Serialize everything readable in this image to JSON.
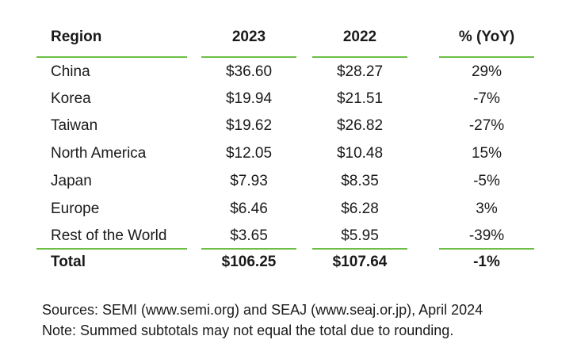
{
  "table": {
    "headers": {
      "region": "Region",
      "y2023": "2023",
      "y2022": "2022",
      "yoy": "% (YoY)"
    },
    "rows": [
      {
        "region": "China",
        "y2023": "$36.60",
        "y2022": "$28.27",
        "yoy": "29%"
      },
      {
        "region": "Korea",
        "y2023": "$19.94",
        "y2022": "$21.51",
        "yoy": "-7%"
      },
      {
        "region": "Taiwan",
        "y2023": "$19.62",
        "y2022": "$26.82",
        "yoy": "-27%"
      },
      {
        "region": "North America",
        "y2023": "$12.05",
        "y2022": "$10.48",
        "yoy": "15%"
      },
      {
        "region": "Japan",
        "y2023": "$7.93",
        "y2022": "$8.35",
        "yoy": "-5%"
      },
      {
        "region": "Europe",
        "y2023": "$6.46",
        "y2022": "$6.28",
        "yoy": "3%"
      },
      {
        "region": "Rest of the World",
        "y2023": "$3.65",
        "y2022": "$5.95",
        "yoy": "-39%"
      }
    ],
    "total": {
      "region": "Total",
      "y2023": "$106.25",
      "y2022": "$107.64",
      "yoy": "-1%"
    }
  },
  "notes": {
    "sources": "Sources: SEMI (www.semi.org) and SEAJ (www.seaj.or.jp), April 2024",
    "note": "Note: Summed subtotals may not equal the total due to rounding."
  },
  "colors": {
    "rule": "#6cbf46",
    "text": "#1a1a1a",
    "background": "#ffffff"
  }
}
